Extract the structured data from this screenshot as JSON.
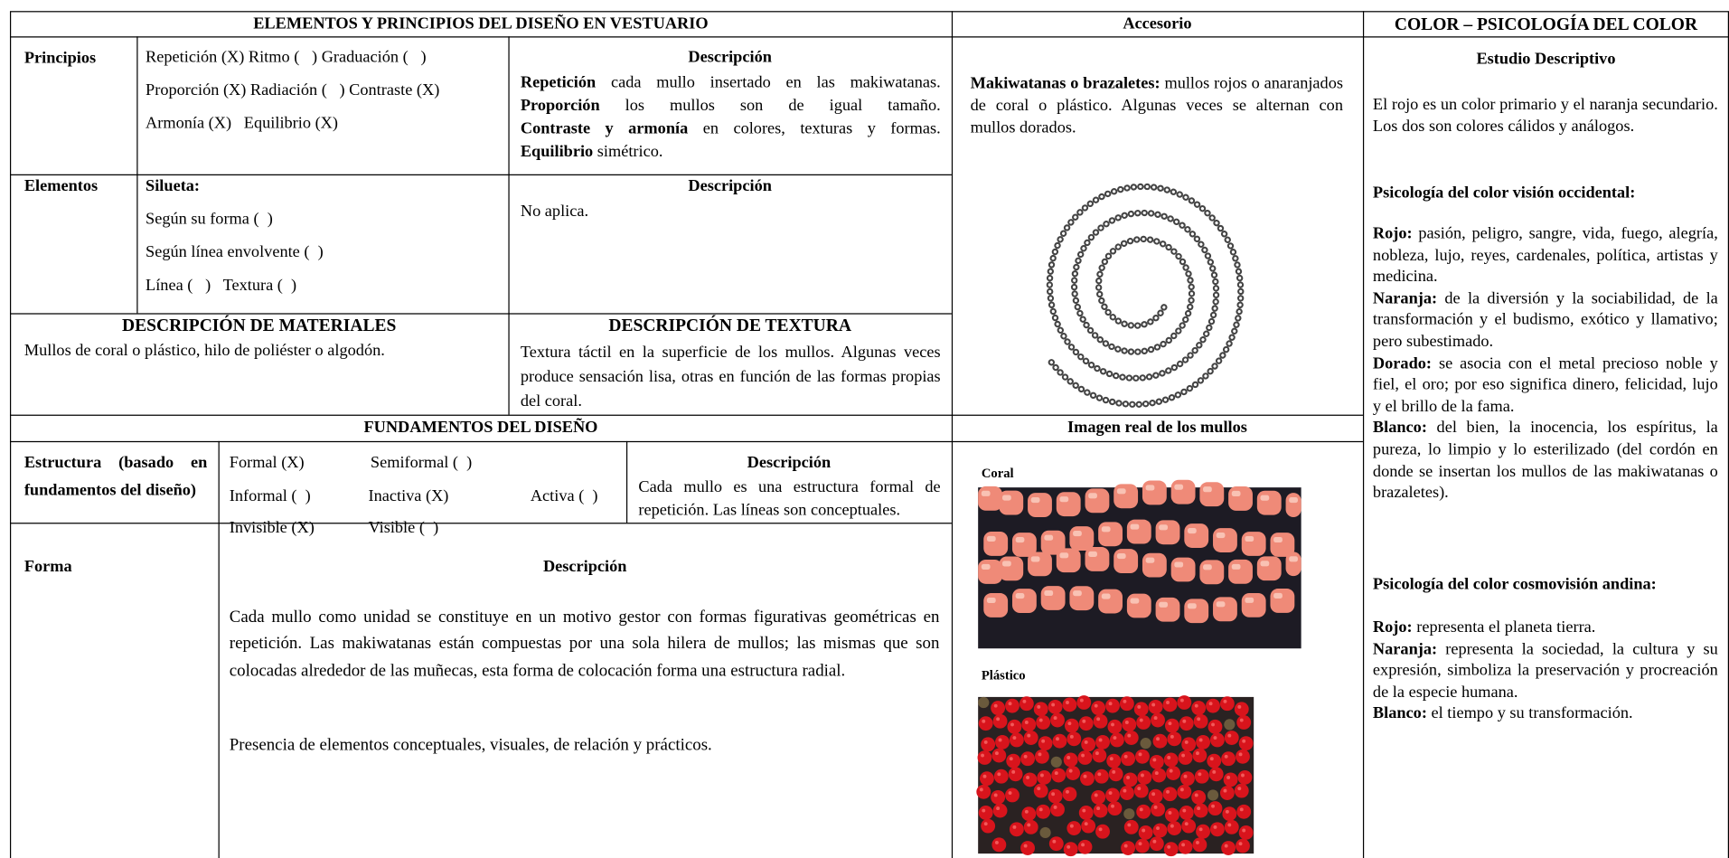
{
  "header": {
    "title": "ELEMENTOS Y PRINCIPIOS DEL DISEÑO EN VESTUARIO",
    "accessory": "Accesorio",
    "color": "COLOR – PSICOLOGÍA DEL COLOR"
  },
  "principles": {
    "label": "Principios",
    "options": [
      "Repetición (X) Ritmo (   ) Graduación (   )",
      "Proporción (X) Radiación (   ) Contraste (X)",
      "Armonía (X)   Equilibrio (X)"
    ],
    "description_title": "Descripción",
    "description": [
      {
        "term": "Repetición",
        "text": " cada mullo insertado en las makiwatanas."
      },
      {
        "term": "Proporción",
        "text": " los mullos son de igual tamaño."
      },
      {
        "term": "Contraste y armonía",
        "text": " en colores, texturas y formas."
      },
      {
        "term": "Equilibrio",
        "text": " simétrico."
      }
    ]
  },
  "elements": {
    "label": "Elementos",
    "silhouette": "Silueta:",
    "options": [
      "Según su forma (  )",
      "Según línea envolvente (  )",
      "Línea (   )   Textura (  )"
    ],
    "description_title": "Descripción",
    "description": "No aplica."
  },
  "materials": {
    "title": "DESCRIPCIÓN DE MATERIALES",
    "text": "Mullos de coral o plástico, hilo de poliéster o algodón."
  },
  "texture": {
    "title": "DESCRIPCIÓN DE TEXTURA",
    "text": "Textura táctil en la superficie de los mullos. Algunas veces produce sensación lisa, otras en función de las formas propias del coral."
  },
  "fundamentals": {
    "title": "FUNDAMENTOS DEL DISEÑO",
    "structure": {
      "label": "Estructura (basado en fundamentos del diseño)",
      "options": [
        "Formal (X)",
        "Semiformal (  )",
        "Informal (  )",
        "Inactiva (X)",
        "Activa (  )",
        "Invisible (X)",
        "Visible (  )"
      ],
      "description_title": "Descripción",
      "description": "Cada mullo es una estructura formal de repetición. Las líneas son conceptuales."
    },
    "form": {
      "label": "Forma",
      "description_title": "Descripción",
      "paragraphs": [
        "Cada mullo como unidad se constituye en un motivo gestor con formas figurativas geométricas en repetición. Las makiwatanas están compuestas por una sola hilera de mullos; las mismas que son colocadas alrededor de las muñecas, esta forma de colocación forma una estructura radial.",
        "Presencia de elementos conceptuales, visuales, de relación y prácticos."
      ]
    }
  },
  "accessory": {
    "description": {
      "term": "Makiwatanas o brazaletes:",
      "text": " mullos rojos o anaranjados de coral o plástico. Algunas veces se alternan con mullos dorados."
    },
    "images_title": "Imagen real de los mullos",
    "images": [
      {
        "label": "Coral"
      },
      {
        "label": "Plástico"
      }
    ]
  },
  "color": {
    "title": "Estudio Descriptivo",
    "intro": "El rojo es un color primario y el naranja secundario. Los dos son colores cálidos y análogos.",
    "western": {
      "title": "Psicología del color visión occidental:",
      "items": [
        {
          "term": "Rojo:",
          "text": " pasión, peligro, sangre,  vida, fuego, alegría, nobleza, lujo, reyes, cardenales, política, artistas y  medicina."
        },
        {
          "term": "Naranja:",
          "text": " de la diversión y la sociabilidad, de la transformación y el budismo, exótico y llamativo; pero subestimado."
        },
        {
          "term": "Dorado:",
          "text": " se asocia con el metal precioso noble y fiel, el oro; por eso significa dinero, felicidad, lujo y el brillo de la fama."
        },
        {
          "term": "Blanco:",
          "text": " del bien, la inocencia, los espíritus, la pureza, lo limpio y lo esterilizado (del cordón en donde se insertan los mullos de las makiwatanas o brazaletes)."
        }
      ]
    },
    "andean": {
      "title": "Psicología del color cosmovisión andina:",
      "items": [
        {
          "term": "Rojo:",
          "text": " representa el planeta tierra."
        },
        {
          "term": "Naranja:",
          "text": " representa la sociedad, la cultura y su expresión, simboliza la preservación y procreación de la especie humana."
        },
        {
          "term": "Blanco:",
          "text": " el tiempo y su transformación."
        }
      ]
    }
  }
}
